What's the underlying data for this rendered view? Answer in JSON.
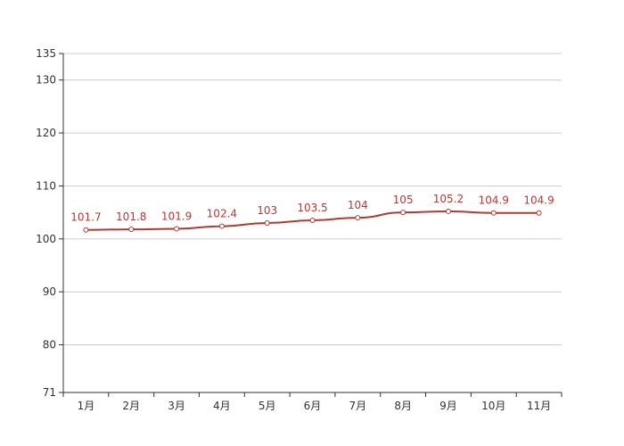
{
  "chart_data": {
    "type": "line",
    "title": "",
    "xlabel": "",
    "ylabel": "",
    "categories": [
      "1月",
      "2月",
      "3月",
      "4月",
      "5月",
      "6月",
      "7月",
      "8月",
      "9月",
      "10月",
      "11月"
    ],
    "series": [
      {
        "name": "",
        "values": [
          101.7,
          101.8,
          101.9,
          102.4,
          103,
          103.5,
          104,
          105,
          105.2,
          104.9,
          104.9
        ],
        "color": "#b03a34"
      }
    ],
    "ylim": [
      71,
      135
    ],
    "yticks": [
      71,
      80,
      90,
      100,
      110,
      120,
      130,
      135
    ],
    "grid": true,
    "legend": null
  }
}
